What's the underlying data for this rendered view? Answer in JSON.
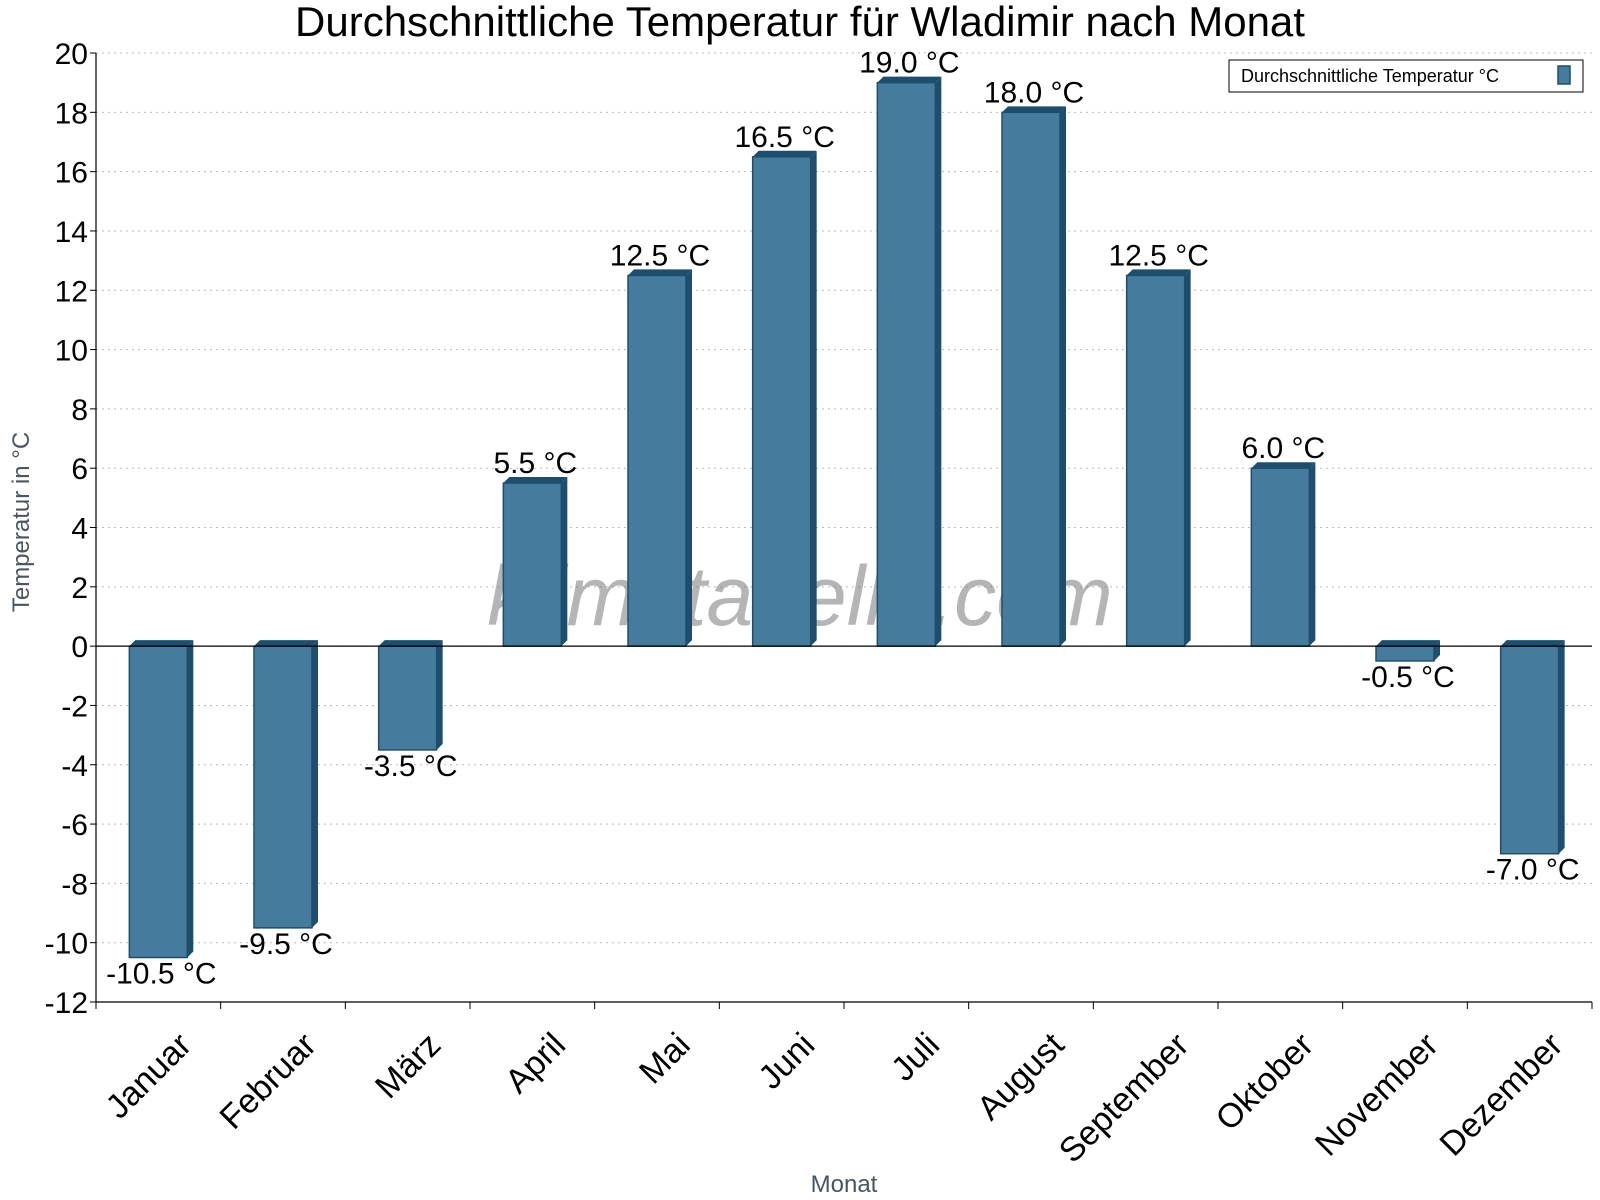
{
  "chart_data": {
    "type": "bar",
    "title": "Durchschnittliche Temperatur für Wladimir nach Monat",
    "xlabel": "Monat",
    "ylabel": "Temperatur in °C",
    "categories": [
      "Januar",
      "Februar",
      "März",
      "April",
      "Mai",
      "Juni",
      "Juli",
      "August",
      "September",
      "Oktober",
      "November",
      "Dezember"
    ],
    "series": [
      {
        "name": "Durchschnittliche Temperatur °C",
        "values": [
          -10.5,
          -9.5,
          -3.5,
          5.5,
          12.5,
          16.5,
          19.0,
          18.0,
          12.5,
          6.0,
          -0.5,
          -7.0
        ]
      }
    ],
    "data_labels": [
      "-10.5 °C",
      "-9.5 °C",
      "-3.5 °C",
      "5.5 °C",
      "12.5 °C",
      "16.5 °C",
      "19.0 °C",
      "18.0 °C",
      "12.5 °C",
      "6.0 °C",
      "-0.5 °C",
      "-7.0 °C"
    ],
    "ylim": [
      -12,
      20
    ],
    "yticks": [
      20,
      18,
      16,
      14,
      12,
      10,
      8,
      6,
      4,
      2,
      0,
      -2,
      -4,
      -6,
      -8,
      -10,
      -12
    ],
    "ytick_labels": [
      "20",
      "18",
      "16",
      "14",
      "12",
      "10",
      "8",
      "6",
      "4",
      "2",
      "0",
      "-2",
      "-4",
      "-6",
      "-8",
      "-10",
      "-12"
    ],
    "grid": true,
    "legend_position": "top-right",
    "watermark": "klimatabelle.com",
    "colors": {
      "bar": "#457b9d",
      "bar_edge": "#1d4e6e",
      "bar_side": "#1d4e6e",
      "grid": "#bbbbbb"
    }
  }
}
